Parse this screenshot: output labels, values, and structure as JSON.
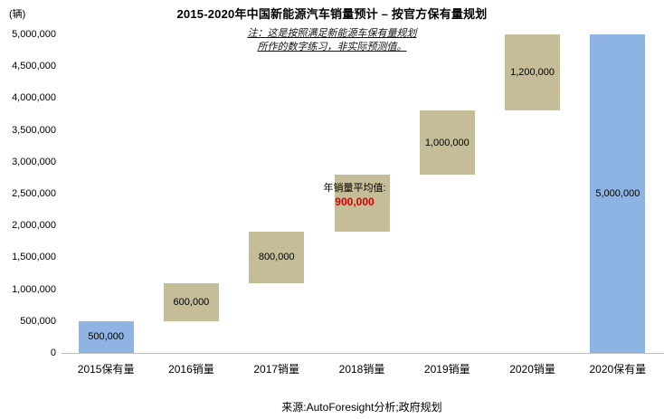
{
  "title": "2015-2020年中国新能源汽车销量预计 – 按官方保有量规划",
  "y_axis_unit": "(辆)",
  "note": {
    "line1": "注：这是按照满足新能源车保有量规划",
    "line2": "所作的数字练习，非实际预测值。"
  },
  "source": "来源:AutoForesight分析;政府规划",
  "colors": {
    "holding": "#8DB4E2",
    "sales": "#C4BD97",
    "annotation_value": "#D40000",
    "axis_line": "#BFBFBF"
  },
  "chart_data": {
    "type": "bar",
    "subtype": "waterfall",
    "title": "2015-2020年中国新能源汽车销量预计 – 按官方保有量规划",
    "ylabel": "(辆)",
    "ylim": [
      0,
      5000000
    ],
    "grid": false,
    "legend": false,
    "categories": [
      "2015保有量",
      "2016销量",
      "2017销量",
      "2018销量",
      "2019销量",
      "2020销量",
      "2020保有量"
    ],
    "y_ticks": [
      "5,000,000",
      "4,500,000",
      "4,000,000",
      "3,500,000",
      "3,000,000",
      "2,500,000",
      "2,000,000",
      "1,500,000",
      "1,000,000",
      "500,000",
      "0"
    ],
    "bars": [
      {
        "category": "2015保有量",
        "start": 0,
        "value": 500000,
        "end": 500000,
        "label": "500,000",
        "type": "holding"
      },
      {
        "category": "2016销量",
        "start": 500000,
        "value": 600000,
        "end": 1100000,
        "label": "600,000",
        "type": "sales"
      },
      {
        "category": "2017销量",
        "start": 1100000,
        "value": 800000,
        "end": 1900000,
        "label": "800,000",
        "type": "sales"
      },
      {
        "category": "2018销量",
        "start": 1900000,
        "value": 900000,
        "end": 2800000,
        "label": "900,000",
        "type": "sales",
        "annotation_label": "年销量平均值:",
        "label_style": "red-bold"
      },
      {
        "category": "2019销量",
        "start": 2800000,
        "value": 1000000,
        "end": 3800000,
        "label": "1,000,000",
        "type": "sales"
      },
      {
        "category": "2020销量",
        "start": 3800000,
        "value": 1200000,
        "end": 5000000,
        "label": "1,200,000",
        "type": "sales"
      },
      {
        "category": "2020保有量",
        "start": 0,
        "value": 5000000,
        "end": 5000000,
        "label": "5,000,000",
        "type": "holding"
      }
    ]
  }
}
